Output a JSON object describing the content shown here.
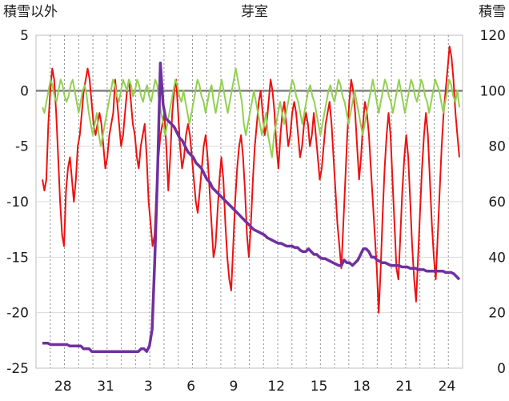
{
  "chart_data": {
    "type": "line",
    "title": "芽室",
    "left_axis_label": "積雪以外",
    "right_axis_label": "積雪",
    "ylim_left": [
      -25,
      5
    ],
    "ylim_right": [
      0,
      120
    ],
    "left_ticks": [
      "5",
      "0",
      "-5",
      "-10",
      "-15",
      "-20",
      "-25"
    ],
    "right_ticks": [
      "120",
      "100",
      "80",
      "60",
      "40",
      "20",
      "0"
    ],
    "x_tick_labels": [
      "28",
      "31",
      "3",
      "6",
      "9",
      "12",
      "15",
      "18",
      "21",
      "24"
    ],
    "grid": true,
    "colors": {
      "sunshine": "#ffc000",
      "precipitation": "#1f8fcf",
      "temperature": "#ee1111",
      "humidity_like": "#92d050",
      "snow_depth": "#7030a0",
      "zero_line": "#808080"
    },
    "series": [
      {
        "axis": "left",
        "kind": "line",
        "color": "temperature",
        "values": [
          -8,
          -9,
          -8,
          -3,
          0,
          2,
          1,
          -2,
          -6,
          -10,
          -13,
          -14,
          -9,
          -7,
          -6,
          -8,
          -10,
          -8,
          -5,
          -4,
          -2,
          0,
          1,
          2,
          1,
          -1,
          -3,
          -4,
          -3,
          -2,
          -3,
          -5,
          -7,
          -6,
          -4,
          -3,
          -2,
          1,
          -1,
          -3,
          -5,
          -4,
          -2,
          0,
          1,
          -1,
          -3,
          -4,
          -6,
          -7,
          -5,
          -4,
          -3,
          -6,
          -10,
          -12,
          -14,
          -13,
          -9,
          -6,
          -4,
          -3,
          -2,
          -5,
          -9,
          -6,
          -2,
          0,
          1,
          -2,
          -5,
          -7,
          -6,
          -4,
          -3,
          -4,
          -6,
          -8,
          -10,
          -11,
          -9,
          -7,
          -5,
          -4,
          -6,
          -9,
          -12,
          -15,
          -14,
          -11,
          -8,
          -6,
          -8,
          -12,
          -15,
          -17,
          -18,
          -14,
          -10,
          -7,
          -5,
          -4,
          -6,
          -9,
          -13,
          -15,
          -12,
          -8,
          -5,
          -3,
          -1,
          0,
          -2,
          -4,
          -3,
          -1,
          1,
          0,
          -2,
          -5,
          -7,
          -4,
          -2,
          -1,
          -3,
          -5,
          -4,
          -2,
          -1,
          -2,
          -4,
          -6,
          -5,
          -3,
          -2,
          -3,
          -5,
          -4,
          -2,
          -4,
          -6,
          -8,
          -7,
          -5,
          -3,
          -2,
          -1,
          -3,
          -6,
          -9,
          -12,
          -14,
          -16,
          -12,
          -8,
          -4,
          -1,
          1,
          0,
          -2,
          -5,
          -8,
          -6,
          -3,
          -1,
          -2,
          -4,
          -7,
          -10,
          -13,
          -16,
          -20,
          -16,
          -11,
          -7,
          -4,
          -2,
          -4,
          -8,
          -12,
          -16,
          -17,
          -13,
          -9,
          -6,
          -4,
          -6,
          -10,
          -14,
          -17,
          -19,
          -15,
          -11,
          -7,
          -4,
          -2,
          -4,
          -8,
          -12,
          -15,
          -17,
          -13,
          -9,
          -5,
          -2,
          0,
          2,
          4,
          3,
          1,
          -2,
          -4,
          -6
        ]
      },
      {
        "axis": "left",
        "kind": "line",
        "color": "humidity_like",
        "values": [
          -1.5,
          -2,
          -1,
          0,
          1,
          0.5,
          -0.5,
          -1,
          0,
          1,
          0.5,
          -0.5,
          -1,
          -0.5,
          0.5,
          1,
          0,
          -1,
          -2,
          -1,
          0,
          0.5,
          -0.5,
          -2,
          -3,
          -4,
          -3,
          -2,
          -4,
          -5,
          -4,
          -3,
          -2,
          -1,
          0,
          1,
          0.5,
          -0.5,
          -1,
          0,
          1,
          0.5,
          0,
          1,
          0.5,
          -0.5,
          0,
          1,
          0.5,
          -0.5,
          -1,
          0,
          0.5,
          -0.5,
          -1,
          0,
          1,
          0.5,
          -1,
          -2,
          -3,
          -4,
          -3,
          -2,
          -1,
          0,
          1,
          0.5,
          -0.5,
          -1,
          0,
          -1,
          -2,
          -3,
          -2,
          -1,
          0,
          1,
          0.5,
          -0.5,
          -1,
          -2,
          -1,
          0,
          0.5,
          -1,
          -2,
          -1,
          0,
          1,
          0,
          -1,
          -2,
          -1,
          0,
          1,
          2,
          1,
          0,
          -1,
          -3,
          -4,
          -3,
          -2,
          -1,
          0,
          -1,
          -2,
          -3,
          -4,
          -3,
          -2,
          -4,
          -5,
          -6,
          -4,
          -3,
          -2,
          -1,
          -2,
          -3,
          -2,
          -1,
          0,
          1,
          0.5,
          -0.5,
          -1,
          -2,
          -3,
          -2,
          -1,
          0,
          0.5,
          -0.5,
          -1,
          -2,
          -3,
          -4,
          -3,
          -2,
          -1,
          0,
          0.5,
          -0.5,
          -1,
          0,
          1,
          0.5,
          -0.5,
          -1,
          -2,
          -3,
          -2,
          -1,
          0,
          -1,
          -2,
          -3,
          -4,
          -3,
          -2,
          -1,
          0,
          1,
          0,
          -1,
          -2,
          -1,
          0,
          1,
          0.5,
          -0.5,
          -1,
          -2,
          -1,
          0,
          1,
          0,
          -1,
          -2,
          -1,
          0,
          1,
          0.5,
          -0.5,
          -1,
          0,
          1,
          0.5,
          -0.5,
          -1,
          -2,
          -1,
          0,
          1,
          0.5,
          0,
          -1,
          -2,
          -1,
          0,
          1,
          0.5,
          -0.5,
          -1,
          0,
          -1.5
        ]
      },
      {
        "axis": "right",
        "kind": "line",
        "color": "snow_depth",
        "values": [
          9,
          9,
          9,
          8.5,
          8.5,
          8.5,
          8.5,
          8.5,
          8.5,
          8.5,
          8,
          8,
          8,
          8,
          8,
          7,
          7,
          7,
          6,
          6,
          6,
          6,
          6,
          6,
          6,
          6,
          6,
          6,
          6,
          6,
          6,
          6,
          6,
          6,
          6,
          6,
          7,
          7,
          6,
          8,
          14,
          40,
          72,
          110,
          95,
          90,
          89,
          88,
          87,
          85,
          83,
          82,
          80,
          78,
          77,
          76,
          74,
          73,
          72,
          70,
          68,
          67,
          65,
          64,
          63,
          62,
          61,
          60,
          59,
          58,
          57,
          56,
          55,
          54,
          53,
          52,
          51,
          50,
          49.5,
          49,
          48.5,
          48,
          47,
          46.5,
          46,
          45.5,
          45,
          45,
          44.5,
          44,
          44,
          44,
          43.5,
          43.5,
          42.5,
          42,
          42,
          43,
          42,
          41,
          41,
          40,
          39.5,
          39.5,
          39,
          38.5,
          38,
          37.5,
          37,
          37,
          39,
          38,
          38,
          37,
          38,
          39,
          41,
          43,
          43,
          42,
          40,
          40,
          39,
          38.5,
          38,
          38,
          37.5,
          37,
          37,
          37,
          37,
          36.5,
          36.5,
          36.5,
          36,
          36,
          36,
          35.5,
          35.5,
          35.5,
          35,
          35,
          35,
          35,
          35,
          35,
          35,
          34.5,
          34.5,
          34.5,
          34,
          33,
          32
        ]
      }
    ],
    "bars": [
      {
        "axis": "left",
        "color": "sunshine",
        "label": "",
        "values": []
      },
      {
        "axis": "left",
        "color": "precipitation",
        "label": "",
        "values": []
      }
    ]
  }
}
